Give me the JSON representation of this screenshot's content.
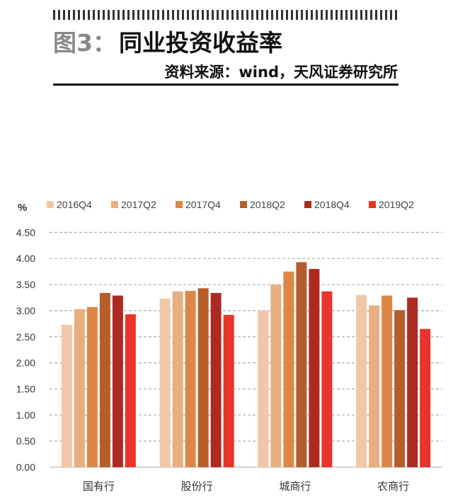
{
  "header": {
    "prefix": "图3：",
    "title": "同业投资收益率",
    "source": "资料来源：wind，天风证券研究所"
  },
  "chart_data": {
    "type": "bar",
    "title": "",
    "ylabel": "%",
    "ylim": [
      0,
      4.5
    ],
    "yticks": [
      "0.00",
      "0.50",
      "1.00",
      "1.50",
      "2.00",
      "2.50",
      "3.00",
      "3.50",
      "4.00",
      "4.50"
    ],
    "grid": true,
    "legend": "top",
    "categories": [
      "国有行",
      "股份行",
      "城商行",
      "农商行"
    ],
    "series": [
      {
        "name": "2016Q4",
        "color": "#F2C7A6",
        "values": [
          2.73,
          3.23,
          3.0,
          3.3
        ]
      },
      {
        "name": "2017Q2",
        "color": "#E8AE82",
        "values": [
          3.03,
          3.37,
          3.5,
          3.1
        ]
      },
      {
        "name": "2017Q4",
        "color": "#DE8646",
        "values": [
          3.07,
          3.38,
          3.75,
          3.29
        ]
      },
      {
        "name": "2018Q2",
        "color": "#B45E2C",
        "values": [
          3.34,
          3.43,
          3.93,
          3.01
        ]
      },
      {
        "name": "2018Q4",
        "color": "#AD2A22",
        "values": [
          3.29,
          3.34,
          3.8,
          3.25
        ]
      },
      {
        "name": "2019Q2",
        "color": "#E8342A",
        "values": [
          2.93,
          2.92,
          3.37,
          2.65
        ]
      }
    ]
  }
}
